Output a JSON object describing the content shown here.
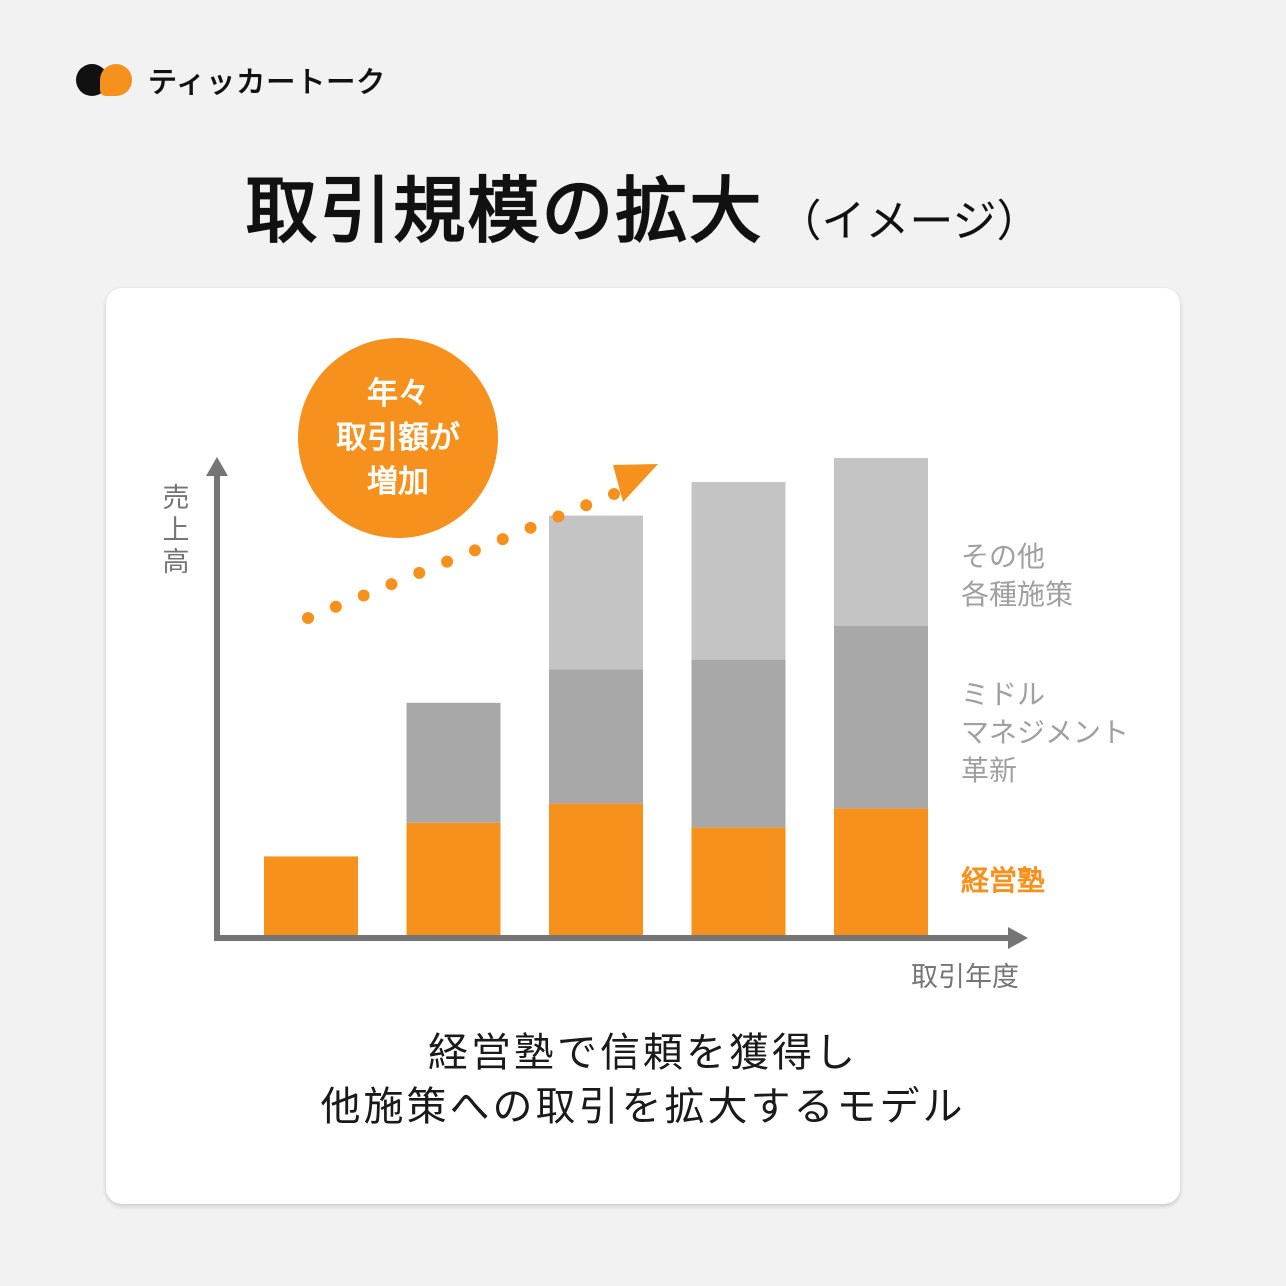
{
  "brand": {
    "name": "ティッカートーク",
    "logo_icon": "speech-bubbles-icon"
  },
  "title": {
    "main": "取引規模の拡大",
    "sub": "（イメージ）"
  },
  "caption": {
    "line1": "経営塾で信頼を獲得し",
    "line2": "他施策への取引を拡大するモデル"
  },
  "colors": {
    "orange": "#f7911e",
    "mid_gray": "#a8a8a8",
    "light_gray": "#c4c4c4",
    "axis": "#757575",
    "legend_gray": "#a0a0a0"
  },
  "chart_data": {
    "type": "bar",
    "stacked": true,
    "xlabel": "取引年度",
    "ylabel": "売上高",
    "categories": [
      "",
      "",
      "",
      "",
      ""
    ],
    "ylim": [
      0,
      100
    ],
    "series": [
      {
        "name": "経営塾",
        "color": "#f7911e",
        "values": [
          17,
          24,
          28,
          23,
          27
        ]
      },
      {
        "name": "ミドル マネジメント 革新",
        "color": "#a8a8a8",
        "values": [
          0,
          25,
          28,
          35,
          38
        ]
      },
      {
        "name": "その他 各種施策",
        "color": "#c4c4c4",
        "values": [
          0,
          0,
          32,
          37,
          35
        ]
      }
    ],
    "legend_lines": [
      [
        "その他",
        "各種施策"
      ],
      [
        "ミドル",
        "マネジメント",
        "革新"
      ],
      [
        "経営塾"
      ]
    ],
    "legend_position": "right",
    "annotation": {
      "lines": [
        "年々",
        "取引額が",
        "増加"
      ],
      "arrow": "dotted-upward-trend-arrow"
    },
    "grid": false
  }
}
